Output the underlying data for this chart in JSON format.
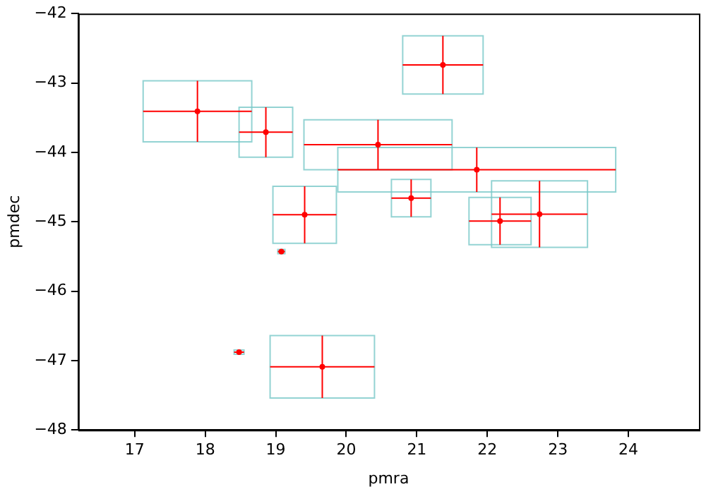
{
  "chart_data": {
    "type": "scatter",
    "xlabel": "pmra",
    "ylabel": "pmdec",
    "xlim": [
      16.2,
      25
    ],
    "ylim": [
      -48,
      -42
    ],
    "xticks": [
      17,
      18,
      19,
      20,
      21,
      22,
      23,
      24
    ],
    "yticks": [
      -48,
      -47,
      -46,
      -45,
      -44,
      -43,
      -42
    ],
    "grid": false,
    "legend": false,
    "marker": "circle",
    "series": [
      {
        "color": "#ff0000",
        "x": [
          17.89,
          18.86,
          21.37,
          20.45,
          21.85,
          20.92,
          19.41,
          22.18,
          22.74,
          19.08,
          18.48,
          19.66
        ],
        "values": [
          -43.41,
          -43.71,
          -42.74,
          -43.89,
          -44.25,
          -44.66,
          -44.9,
          -44.99,
          -44.89,
          -45.43,
          -46.88,
          -47.09
        ],
        "xerrors": [
          0.77,
          0.38,
          0.57,
          1.05,
          1.97,
          0.28,
          0.45,
          0.44,
          0.68,
          0.05,
          0.07,
          0.74
        ],
        "errors": [
          0.44,
          0.36,
          0.42,
          0.36,
          0.32,
          0.27,
          0.41,
          0.34,
          0.48,
          0.03,
          0.03,
          0.45
        ]
      }
    ]
  }
}
